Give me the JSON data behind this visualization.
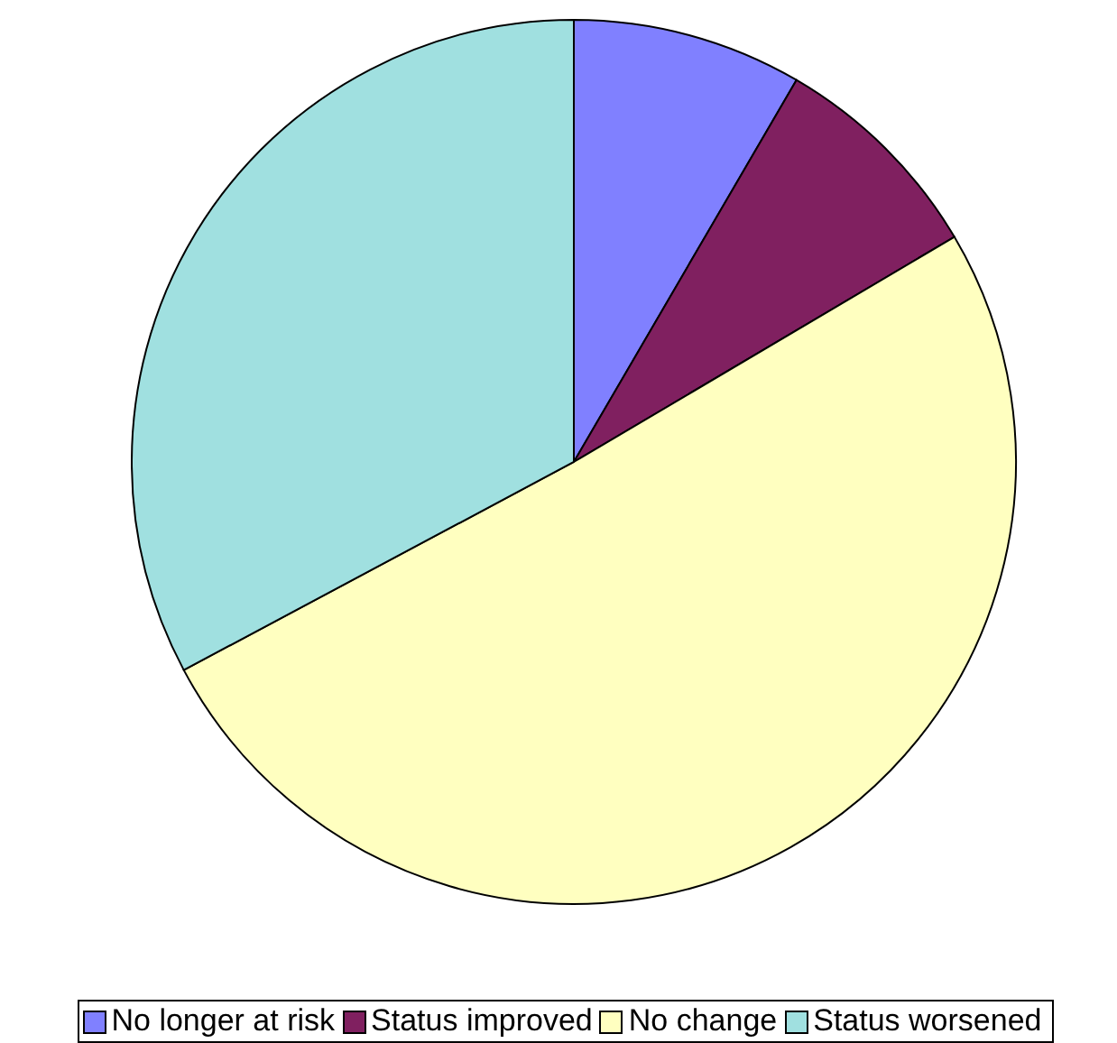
{
  "chart_data": {
    "type": "pie",
    "categories": [
      "No longer at risk",
      "Status improved",
      "No change",
      "Status worsened"
    ],
    "values": [
      8.4,
      8.1,
      50.7,
      32.8
    ],
    "colors": [
      "#8080ff",
      "#802060",
      "#ffffc0",
      "#a0e0e0"
    ],
    "legend": "bottom"
  }
}
